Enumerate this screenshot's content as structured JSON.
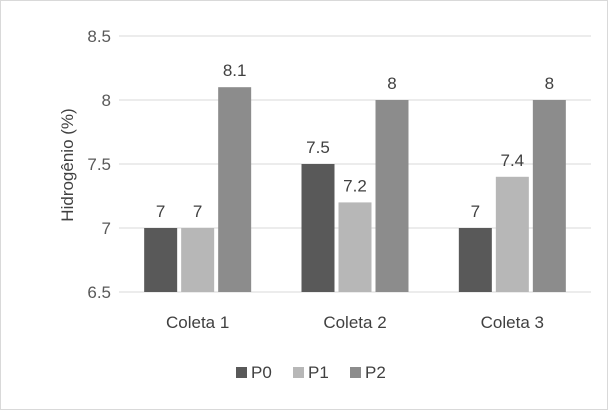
{
  "chart_data": {
    "type": "bar",
    "categories": [
      "Coleta 1",
      "Coleta 2",
      "Coleta 3"
    ],
    "series": [
      {
        "name": "P0",
        "values": [
          7,
          7.5,
          7
        ],
        "color": "#595959"
      },
      {
        "name": "P1",
        "values": [
          7,
          7.2,
          7.4
        ],
        "color": "#b7b7b7"
      },
      {
        "name": "P2",
        "values": [
          8.1,
          8,
          8
        ],
        "color": "#8c8c8c"
      }
    ],
    "data_labels": [
      [
        "7",
        "7.5",
        "7"
      ],
      [
        "7",
        "7.2",
        "7.4"
      ],
      [
        "8.1",
        "8",
        "8"
      ]
    ],
    "ylabel": "Hidrogênio (%)",
    "ylim": [
      6.5,
      8.5
    ],
    "yticks": [
      "6.5",
      "7",
      "7.5",
      "8",
      "8.5"
    ],
    "grid": true,
    "legend_position": "bottom",
    "colors": {
      "grid": "#d9d9d9",
      "text": "#404040",
      "axis_text": "#595959"
    }
  }
}
